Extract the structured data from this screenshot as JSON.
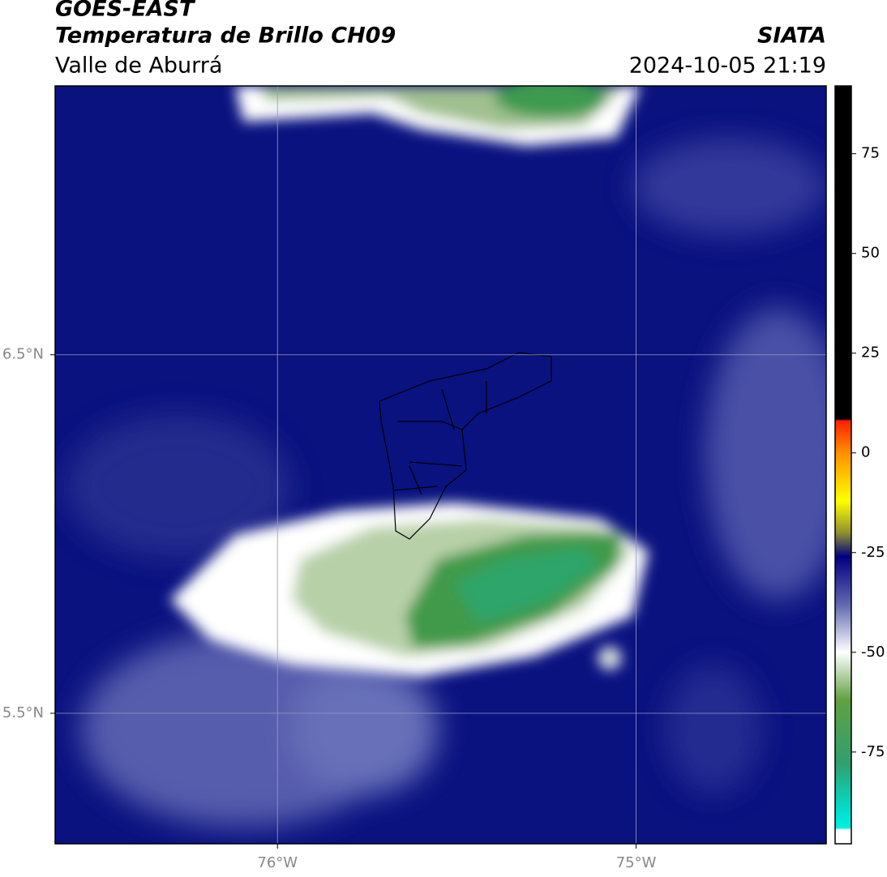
{
  "header": {
    "title": "GOES-EAST",
    "subtitle": "Temperatura de Brillo CH09",
    "source": "SIATA",
    "region": "Valle de Aburrá",
    "datetime": "2024-10-05 21:19"
  },
  "map": {
    "xlim": [
      -76.62,
      -74.47
    ],
    "ylim": [
      5.136,
      7.25
    ],
    "xticks": [
      {
        "value": -76,
        "label": "76°W"
      },
      {
        "value": -75,
        "label": "75°W"
      }
    ],
    "yticks": [
      {
        "value": 6.5,
        "label": "6.5°N"
      },
      {
        "value": 5.5,
        "label": "5.5°N"
      }
    ],
    "grid": true
  },
  "colorbar": {
    "lim": [
      -98,
      92
    ],
    "ticks": [
      75,
      50,
      25,
      0,
      -25,
      -50,
      -75
    ],
    "stops": [
      [
        92,
        "#000000"
      ],
      [
        8.5,
        "#000000"
      ],
      [
        8,
        "#ff2000"
      ],
      [
        0,
        "#ff9000"
      ],
      [
        -12,
        "#ffff00"
      ],
      [
        -20,
        "#909030"
      ],
      [
        -26,
        "#000080"
      ],
      [
        -38,
        "#6068b0"
      ],
      [
        -50,
        "#ffffff"
      ],
      [
        -62,
        "#60a040"
      ],
      [
        -78,
        "#30a070"
      ],
      [
        -90,
        "#00e0d0"
      ],
      [
        -94,
        "#00f0e0"
      ],
      [
        -94.5,
        "#ffffff"
      ],
      [
        -98,
        "#ffffff"
      ]
    ]
  }
}
